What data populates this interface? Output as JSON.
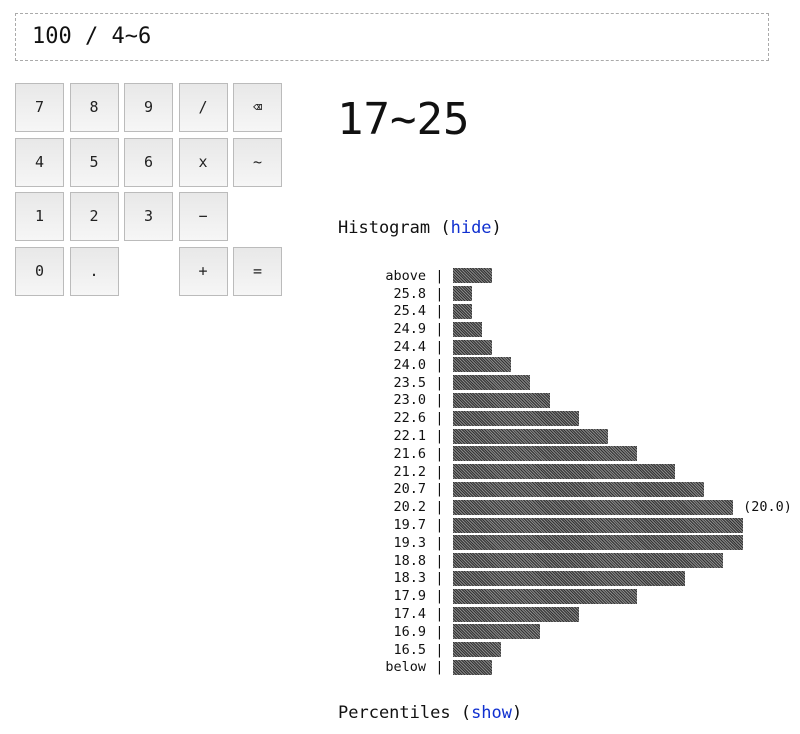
{
  "expression": "100 / 4~6",
  "keypad": [
    {
      "label": "7",
      "row": 0,
      "col": 0
    },
    {
      "label": "8",
      "row": 0,
      "col": 1
    },
    {
      "label": "9",
      "row": 0,
      "col": 2
    },
    {
      "label": "/",
      "row": 0,
      "col": 3
    },
    {
      "label": "⌫",
      "row": 0,
      "col": 4,
      "icon": "backspace-icon"
    },
    {
      "label": "4",
      "row": 1,
      "col": 0
    },
    {
      "label": "5",
      "row": 1,
      "col": 1
    },
    {
      "label": "6",
      "row": 1,
      "col": 2
    },
    {
      "label": "x",
      "row": 1,
      "col": 3
    },
    {
      "label": "~",
      "row": 1,
      "col": 4
    },
    {
      "label": "1",
      "row": 2,
      "col": 0
    },
    {
      "label": "2",
      "row": 2,
      "col": 1
    },
    {
      "label": "3",
      "row": 2,
      "col": 2
    },
    {
      "label": "−",
      "row": 2,
      "col": 3
    },
    {
      "label": "0",
      "row": 3,
      "col": 0
    },
    {
      "label": ".",
      "row": 3,
      "col": 1
    },
    {
      "label": "+",
      "row": 3,
      "col": 3
    },
    {
      "label": "=",
      "row": 3,
      "col": 4
    }
  ],
  "result": "17~25",
  "histogram": {
    "title": "Histogram (",
    "toggle": "hide",
    "close": ")",
    "rows": [
      {
        "label": "above",
        "count": 4
      },
      {
        "label": "25.8",
        "count": 2
      },
      {
        "label": "25.4",
        "count": 2
      },
      {
        "label": "24.9",
        "count": 3
      },
      {
        "label": "24.4",
        "count": 4
      },
      {
        "label": "24.0",
        "count": 6
      },
      {
        "label": "23.5",
        "count": 8
      },
      {
        "label": "23.0",
        "count": 10
      },
      {
        "label": "22.6",
        "count": 13
      },
      {
        "label": "22.1",
        "count": 16
      },
      {
        "label": "21.6",
        "count": 19
      },
      {
        "label": "21.2",
        "count": 23
      },
      {
        "label": "20.7",
        "count": 26
      },
      {
        "label": "20.2",
        "count": 29,
        "note": "(20.0)"
      },
      {
        "label": "19.7",
        "count": 30
      },
      {
        "label": "19.3",
        "count": 30
      },
      {
        "label": "18.8",
        "count": 28
      },
      {
        "label": "18.3",
        "count": 24
      },
      {
        "label": "17.9",
        "count": 19
      },
      {
        "label": "17.4",
        "count": 13
      },
      {
        "label": "16.9",
        "count": 9
      },
      {
        "label": "16.5",
        "count": 5
      },
      {
        "label": "below",
        "count": 4
      }
    ],
    "separator": "|"
  },
  "percentiles": {
    "title": "Percentiles (",
    "toggle": "show",
    "close": ")"
  },
  "colors": {
    "link": "#1030d0",
    "bar": "#333333"
  }
}
